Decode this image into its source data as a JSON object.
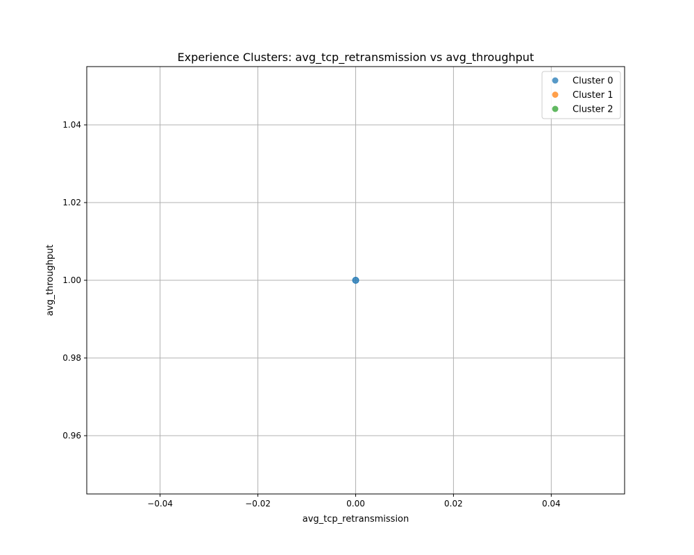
{
  "chart_data": {
    "type": "scatter",
    "title": "Experience Clusters: avg_tcp_retransmission vs avg_throughput",
    "xlabel": "avg_tcp_retransmission",
    "ylabel": "avg_throughput",
    "xlim": [
      -0.055,
      0.055
    ],
    "ylim": [
      0.945,
      1.055
    ],
    "xticks": [
      -0.04,
      -0.02,
      0.0,
      0.02,
      0.04
    ],
    "xtick_labels": [
      "−0.04",
      "−0.02",
      "0.00",
      "0.02",
      "0.04"
    ],
    "yticks": [
      0.96,
      0.98,
      1.0,
      1.02,
      1.04
    ],
    "ytick_labels": [
      "0.96",
      "0.98",
      "1.00",
      "1.02",
      "1.04"
    ],
    "grid": true,
    "legend_position": "top-right",
    "series": [
      {
        "name": "Cluster 0",
        "color": "#1f77b4",
        "points": [
          [
            0.0,
            1.0
          ]
        ]
      },
      {
        "name": "Cluster 1",
        "color": "#ff7f0e",
        "points": []
      },
      {
        "name": "Cluster 2",
        "color": "#2ca02c",
        "points": []
      }
    ]
  }
}
